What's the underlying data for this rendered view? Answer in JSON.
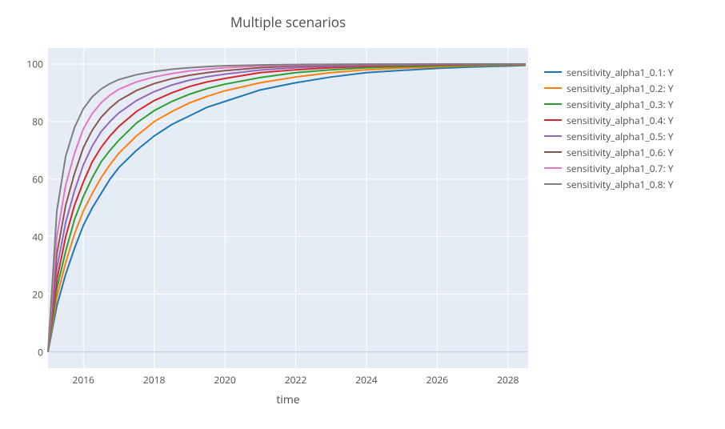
{
  "chart": {
    "type": "line",
    "title": "Multiple scenarios",
    "title_fontsize": 17,
    "xlabel": "time",
    "label_fontsize": 14,
    "background_color": "#ffffff",
    "plot_bgcolor": "#e5ecf6",
    "grid_color": "#ffffff",
    "zero_line_color": "#c8d4e3",
    "axis_text_color": "#4d4d4d",
    "tick_fontsize": 12,
    "line_width": 2,
    "x": {
      "min": 2015,
      "max": 2028.57,
      "ticks": [
        2016,
        2018,
        2020,
        2022,
        2024,
        2026,
        2028
      ]
    },
    "y": {
      "min": -5.67,
      "max": 105.56,
      "ticks": [
        0,
        20,
        40,
        60,
        80,
        100
      ]
    },
    "x_data": [
      2015.0,
      2015.25,
      2015.5,
      2015.75,
      2016.0,
      2016.25,
      2016.5,
      2016.75,
      2017.0,
      2017.5,
      2018.0,
      2018.5,
      2019.0,
      2019.5,
      2020.0,
      2021.0,
      2022.0,
      2023.0,
      2024.0,
      2025.0,
      2026.0,
      2027.0,
      2028.0,
      2028.5
    ],
    "series": [
      {
        "label": "sensitivity_alpha1_0.1: Y",
        "color": "#636efa",
        "y": [
          0,
          16,
          27,
          36,
          44,
          50,
          55,
          60,
          64,
          70,
          75,
          79,
          82,
          85,
          87,
          91,
          93.5,
          95.5,
          97,
          97.8,
          98.5,
          99,
          99.3,
          99.5
        ]
      },
      {
        "label": "sensitivity_alpha1_0.2: Y",
        "color": "#ef553b",
        "y": [
          0,
          19,
          31,
          41,
          49,
          55,
          60.5,
          65,
          69,
          75,
          80,
          83.5,
          86.5,
          88.8,
          90.7,
          93.5,
          95.5,
          97,
          98,
          98.6,
          99,
          99.4,
          99.6,
          99.7
        ]
      },
      {
        "label": "sensitivity_alpha1_0.3: Y",
        "color": "#00cc96",
        "y": [
          0,
          22,
          35,
          46,
          54,
          60.5,
          66,
          70,
          73.5,
          79.5,
          83.8,
          87,
          89.5,
          91.5,
          93,
          95.3,
          97,
          98,
          98.7,
          99.1,
          99.4,
          99.6,
          99.8,
          99.85
        ]
      },
      {
        "label": "sensitivity_alpha1_0.4: Y",
        "color": "#ab63fa",
        "y": [
          0,
          25,
          40,
          51,
          59,
          66,
          71,
          75,
          78.3,
          83.5,
          87.3,
          90,
          92.2,
          93.8,
          95,
          97,
          98,
          98.7,
          99.2,
          99.5,
          99.7,
          99.8,
          99.9,
          99.92
        ]
      },
      {
        "label": "sensitivity_alpha1_0.5: Y",
        "color": "#ffa15a",
        "y": [
          0,
          29,
          45,
          56,
          65,
          71.5,
          76.5,
          80,
          83,
          87.3,
          90.4,
          92.7,
          94.4,
          95.6,
          96.5,
          97.9,
          98.7,
          99.2,
          99.5,
          99.7,
          99.8,
          99.9,
          99.94,
          99.96
        ]
      },
      {
        "label": "sensitivity_alpha1_0.6: Y",
        "color": "#19d3f3",
        "y": [
          0,
          34,
          51,
          62,
          71,
          77,
          81.5,
          84.7,
          87.3,
          90.8,
          93.2,
          94.9,
          96.1,
          97,
          97.7,
          98.7,
          99.3,
          99.6,
          99.75,
          99.85,
          99.9,
          99.94,
          99.97,
          99.98
        ]
      },
      {
        "label": "sensitivity_alpha1_0.7: Y",
        "color": "#ff6692",
        "y": [
          0,
          40,
          58,
          69,
          77.5,
          82.8,
          86.5,
          89.2,
          91.2,
          93.8,
          95.5,
          96.7,
          97.6,
          98.2,
          98.7,
          99.3,
          99.6,
          99.8,
          99.88,
          99.93,
          99.96,
          99.98,
          99.99,
          99.99
        ]
      },
      {
        "label": "sensitivity_alpha1_0.8: Y",
        "color": "#b6e880",
        "y": [
          0,
          49,
          68,
          78,
          84.5,
          88.6,
          91.3,
          93.2,
          94.6,
          96.3,
          97.4,
          98.2,
          98.7,
          99.1,
          99.4,
          99.7,
          99.84,
          99.91,
          99.95,
          99.97,
          99.985,
          99.99,
          99.995,
          99.997
        ]
      }
    ],
    "series_draw_colors": [
      "#1f77b4",
      "#ff7f0e",
      "#2ca02c",
      "#d62728",
      "#9467bd",
      "#8c564b",
      "#e377c2",
      "#7f7f7f"
    ]
  }
}
